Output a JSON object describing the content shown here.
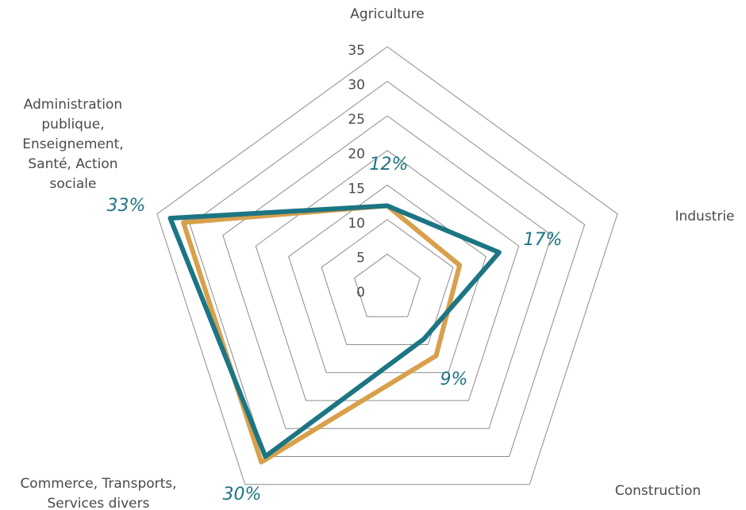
{
  "chart_data": {
    "type": "radar",
    "categories": [
      "Agriculture",
      "Industrie",
      "Construction",
      "Commerce, Transports, Services divers",
      "Administration publique, Enseignement, Santé, Action sociale"
    ],
    "category_lines": [
      [
        "Agriculture"
      ],
      [
        "Industrie"
      ],
      [
        "Construction"
      ],
      [
        "Commerce, Transports,",
        "Services divers"
      ],
      [
        "Administration",
        "publique,",
        "Enseignement,",
        "Santé, Action",
        "sociale"
      ]
    ],
    "rlim": [
      0,
      35
    ],
    "ticks": [
      "0",
      "5",
      "10",
      "15",
      "20",
      "25",
      "30",
      "35"
    ],
    "grid": true,
    "series": [
      {
        "values": [
          12,
          11,
          12,
          31,
          31
        ],
        "color": "#D9A04C"
      },
      {
        "values": [
          12,
          17,
          9,
          30,
          33
        ],
        "color": "#1C7583"
      }
    ],
    "annotations": [
      "12%",
      "17%",
      "9%",
      "30%",
      "33%"
    ],
    "annotation_color": "#1C7583"
  }
}
